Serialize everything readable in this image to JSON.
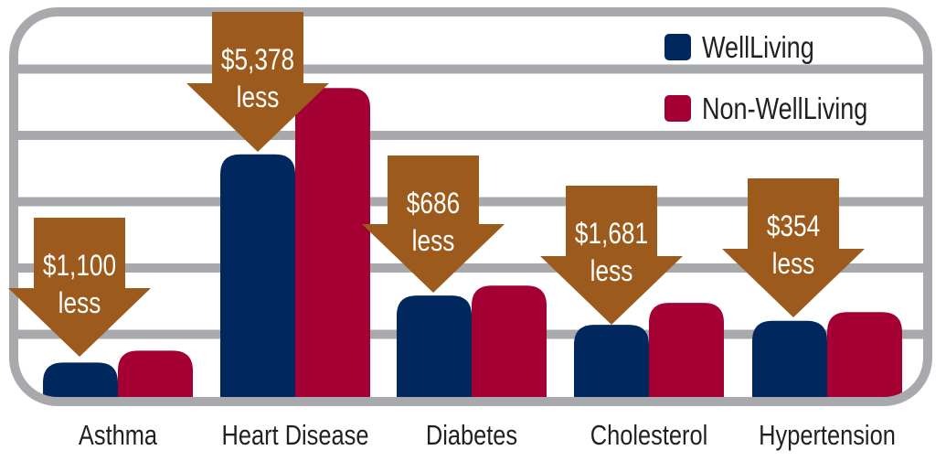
{
  "chart_data": {
    "type": "bar",
    "title": "",
    "xlabel": "",
    "ylabel": "",
    "ylim": [
      0,
      5.7
    ],
    "grid": true,
    "legend_position": "top-right",
    "categories": [
      "Asthma",
      "Heart Disease",
      "Diabetes",
      "Cholesterol",
      "Hypertension"
    ],
    "series": [
      {
        "name": "WellLiving",
        "color": "#00285e",
        "values": [
          0.56,
          3.7,
          1.57,
          1.13,
          1.19
        ]
      },
      {
        "name": "Non-WellLiving",
        "color": "#a50034",
        "values": [
          0.74,
          4.7,
          1.72,
          1.46,
          1.32
        ]
      }
    ],
    "annotations": [
      {
        "category": "Asthma",
        "amount": "$1,100",
        "word": "less"
      },
      {
        "category": "Heart Disease",
        "amount": "$5,378",
        "word": "less"
      },
      {
        "category": "Diabetes",
        "amount": "$686",
        "word": "less"
      },
      {
        "category": "Cholesterol",
        "amount": "$1,681",
        "word": "less"
      },
      {
        "category": "Hypertension",
        "amount": "$354",
        "word": "less"
      }
    ],
    "colors": {
      "frame": "#a7a9ac",
      "arrow": "#9c5b1c",
      "label": "#231f20",
      "arrow_text": "#ffffff"
    }
  }
}
